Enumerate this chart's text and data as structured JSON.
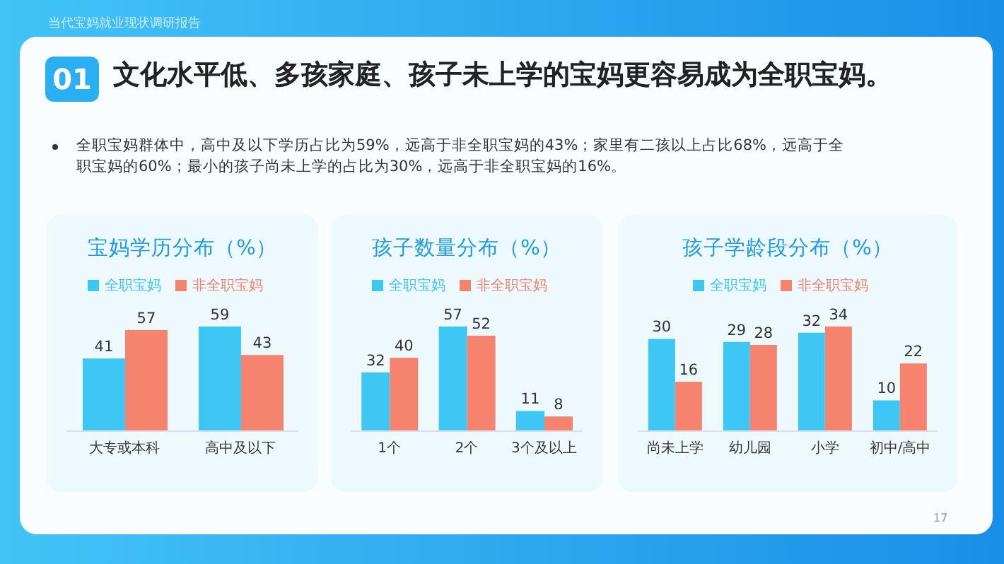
{
  "chart_data": [
    {
      "type": "other",
      "subtitle": "当代宝妈就业现状调研报告",
      "title": "文化水平低、多孩家庭、孩子未上学的宝妈更容易成为全职宝妈。",
      "annotations": [
        "01",
        "全职宝妈群体中，高中及以下学历占比为59%，远高于非全职宝妈的43%；家里有二孩以上占比68%，远高于全职宝妈的60%；最小的孩子尚未上学的占比为30%，远高于非全职宝妈的16%。",
        "17"
      ]
    },
    {
      "type": "bar",
      "title": "宝妈学历分布（%）",
      "categories": [
        "大专或本科",
        "高中及以下"
      ],
      "series": [
        {
          "name": "全职宝妈",
          "color": "#3ec6f4",
          "values": [
            41,
            59
          ]
        },
        {
          "name": "非全职宝妈",
          "color": "#f5836e",
          "values": [
            57,
            43
          ]
        }
      ],
      "data_labels": true,
      "legend": "top"
    },
    {
      "type": "bar",
      "title": "孩子数量分布（%）",
      "categories": [
        "1个",
        "2个",
        "3个及以上"
      ],
      "series": [
        {
          "name": "全职宝妈",
          "color": "#3ec6f4",
          "values": [
            32,
            57,
            11
          ]
        },
        {
          "name": "非全职宝妈",
          "color": "#f5836e",
          "values": [
            40,
            52,
            8
          ]
        }
      ],
      "data_labels": true,
      "legend": "top"
    },
    {
      "type": "bar",
      "title": "孩子学龄段分布（%）",
      "categories": [
        "尚未上学",
        "幼儿园",
        "小学",
        "初中/高中"
      ],
      "series": [
        {
          "name": "全职宝妈",
          "color": "#3ec6f4",
          "values": [
            30,
            29,
            32,
            10
          ]
        },
        {
          "name": "非全职宝妈",
          "color": "#f5836e",
          "values": [
            16,
            28,
            34,
            22
          ]
        }
      ],
      "data_labels": true,
      "legend": "top"
    }
  ]
}
